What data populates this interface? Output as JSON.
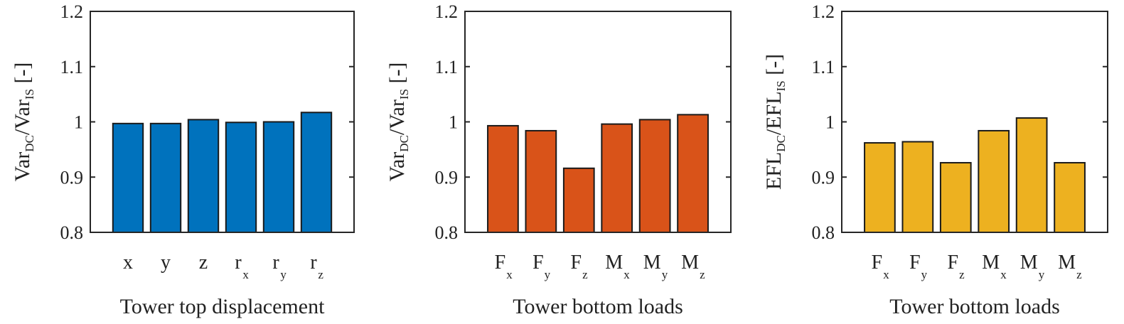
{
  "chart_data": [
    {
      "type": "bar",
      "categories": [
        {
          "base": "x",
          "sub": ""
        },
        {
          "base": "y",
          "sub": ""
        },
        {
          "base": "z",
          "sub": ""
        },
        {
          "base": "r",
          "sub": "x"
        },
        {
          "base": "r",
          "sub": "y"
        },
        {
          "base": "r",
          "sub": "z"
        }
      ],
      "values": [
        0.997,
        0.997,
        1.004,
        0.999,
        1.0,
        1.017
      ],
      "xlabel": "Tower top displacement",
      "ylabel": {
        "parts": [
          {
            "text": "Var",
            "sub": false
          },
          {
            "text": "DC",
            "sub": true
          },
          {
            "text": "/Var",
            "sub": false
          },
          {
            "text": "IS",
            "sub": true
          },
          {
            "text": " [-]",
            "sub": false
          }
        ]
      },
      "ylim": [
        0.8,
        1.2
      ],
      "yticks": [
        "0.8",
        "0.9",
        "1",
        "1.1",
        "1.2"
      ],
      "color": "#0072BD",
      "grid": false
    },
    {
      "type": "bar",
      "categories": [
        {
          "base": "F",
          "sub": "x"
        },
        {
          "base": "F",
          "sub": "y"
        },
        {
          "base": "F",
          "sub": "z"
        },
        {
          "base": "M",
          "sub": "x"
        },
        {
          "base": "M",
          "sub": "y"
        },
        {
          "base": "M",
          "sub": "z"
        }
      ],
      "values": [
        0.993,
        0.984,
        0.916,
        0.996,
        1.004,
        1.013
      ],
      "xlabel": "Tower bottom loads",
      "ylabel": {
        "parts": [
          {
            "text": "Var",
            "sub": false
          },
          {
            "text": "DC",
            "sub": true
          },
          {
            "text": "/Var",
            "sub": false
          },
          {
            "text": "IS",
            "sub": true
          },
          {
            "text": " [-]",
            "sub": false
          }
        ]
      },
      "ylim": [
        0.8,
        1.2
      ],
      "yticks": [
        "0.8",
        "0.9",
        "1",
        "1.1",
        "1.2"
      ],
      "color": "#D95319",
      "grid": false
    },
    {
      "type": "bar",
      "categories": [
        {
          "base": "F",
          "sub": "x"
        },
        {
          "base": "F",
          "sub": "y"
        },
        {
          "base": "F",
          "sub": "z"
        },
        {
          "base": "M",
          "sub": "x"
        },
        {
          "base": "M",
          "sub": "y"
        },
        {
          "base": "M",
          "sub": "z"
        }
      ],
      "values": [
        0.962,
        0.964,
        0.926,
        0.984,
        1.007,
        0.926
      ],
      "xlabel": "Tower bottom loads",
      "ylabel": {
        "parts": [
          {
            "text": "EFL",
            "sub": false
          },
          {
            "text": "DC",
            "sub": true
          },
          {
            "text": "/EFL",
            "sub": false
          },
          {
            "text": "IS",
            "sub": true
          },
          {
            "text": " [-]",
            "sub": false
          }
        ]
      },
      "ylim": [
        0.8,
        1.2
      ],
      "yticks": [
        "0.8",
        "0.9",
        "1",
        "1.1",
        "1.2"
      ],
      "color": "#EDB120",
      "grid": false
    }
  ]
}
